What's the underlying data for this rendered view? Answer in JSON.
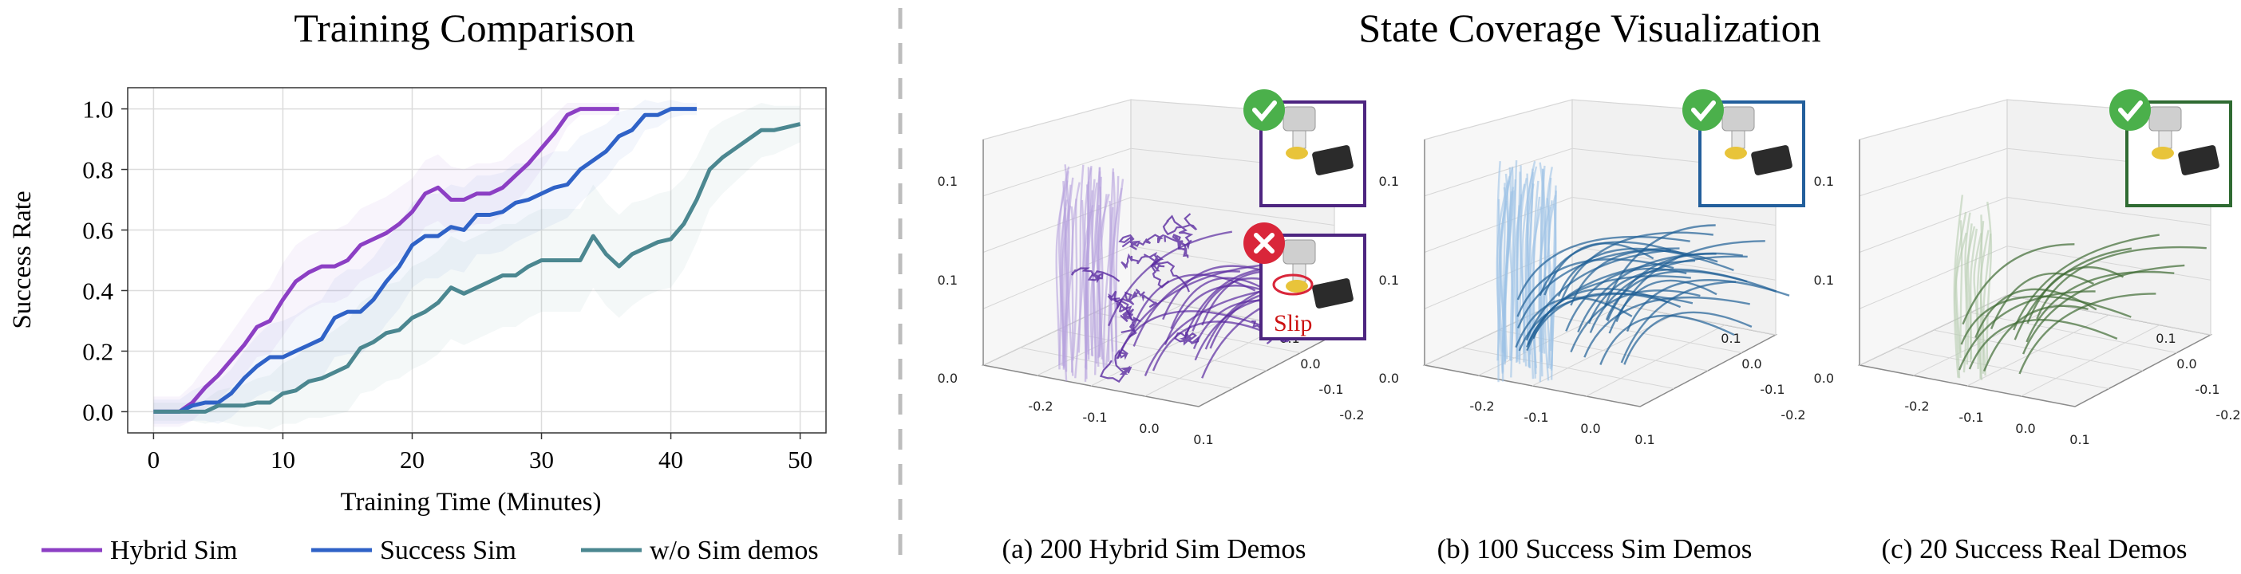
{
  "left_title": "Training Comparison",
  "right_title": "State Coverage Visualization",
  "colors": {
    "hybrid": "#8c3fc4",
    "success": "#2f62c7",
    "wo": "#4b8790",
    "grid": "#dcdcdc",
    "divider": "#bdbdbd",
    "panel_a": "#4d2580",
    "panel_b": "#235f9c",
    "panel_c": "#2f6b32",
    "check": "#4bb04b",
    "cross": "#d9263a"
  },
  "chart_data": [
    {
      "type": "line",
      "title": "Training Comparison",
      "xlabel": "Training Time (Minutes)",
      "ylabel": "Success Rate",
      "xlim": [
        -2,
        52
      ],
      "ylim": [
        -0.07,
        1.07
      ],
      "xticks": [
        "0",
        "10",
        "20",
        "30",
        "40",
        "50"
      ],
      "yticks": [
        "0.0",
        "0.2",
        "0.4",
        "0.6",
        "0.8",
        "1.0"
      ],
      "grid": true,
      "legend": "bottom",
      "series": [
        {
          "name": "Hybrid Sim",
          "color": "#8c3fc4",
          "x": [
            0,
            1,
            2,
            3,
            4,
            5,
            6,
            7,
            8,
            9,
            10,
            11,
            12,
            13,
            14,
            15,
            16,
            17,
            18,
            19,
            20,
            21,
            22,
            23,
            24,
            25,
            26,
            27,
            28,
            29,
            30,
            31,
            32,
            33,
            34,
            35,
            36
          ],
          "y": [
            0,
            0,
            0,
            0.03,
            0.08,
            0.12,
            0.17,
            0.22,
            0.28,
            0.3,
            0.37,
            0.43,
            0.46,
            0.48,
            0.48,
            0.5,
            0.55,
            0.57,
            0.59,
            0.62,
            0.66,
            0.72,
            0.74,
            0.7,
            0.7,
            0.72,
            0.72,
            0.74,
            0.78,
            0.82,
            0.87,
            0.92,
            0.98,
            1.0,
            1.0,
            1.0,
            1.0
          ],
          "band": [
            0.05,
            0.05,
            0.05,
            0.06,
            0.07,
            0.08,
            0.09,
            0.1,
            0.1,
            0.11,
            0.12,
            0.12,
            0.12,
            0.12,
            0.12,
            0.12,
            0.12,
            0.12,
            0.12,
            0.12,
            0.11,
            0.11,
            0.11,
            0.11,
            0.1,
            0.1,
            0.1,
            0.09,
            0.09,
            0.08,
            0.07,
            0.06,
            0.04,
            0.02,
            0.02,
            0.02,
            0.02
          ]
        },
        {
          "name": "Success Sim",
          "color": "#2f62c7",
          "x": [
            0,
            1,
            2,
            3,
            4,
            5,
            6,
            7,
            8,
            9,
            10,
            11,
            12,
            13,
            14,
            15,
            16,
            17,
            18,
            19,
            20,
            21,
            22,
            23,
            24,
            25,
            26,
            27,
            28,
            29,
            30,
            31,
            32,
            33,
            34,
            35,
            36,
            37,
            38,
            39,
            40,
            41,
            42
          ],
          "y": [
            0,
            0,
            0,
            0.02,
            0.03,
            0.03,
            0.06,
            0.11,
            0.15,
            0.18,
            0.18,
            0.2,
            0.22,
            0.24,
            0.31,
            0.33,
            0.33,
            0.37,
            0.43,
            0.48,
            0.55,
            0.58,
            0.58,
            0.61,
            0.6,
            0.65,
            0.65,
            0.66,
            0.69,
            0.7,
            0.72,
            0.74,
            0.75,
            0.8,
            0.83,
            0.86,
            0.91,
            0.93,
            0.98,
            0.98,
            1.0,
            1.0,
            1.0
          ],
          "band": [
            0.04,
            0.04,
            0.04,
            0.05,
            0.06,
            0.07,
            0.08,
            0.09,
            0.1,
            0.11,
            0.12,
            0.12,
            0.13,
            0.13,
            0.13,
            0.14,
            0.14,
            0.14,
            0.14,
            0.14,
            0.14,
            0.14,
            0.14,
            0.14,
            0.14,
            0.13,
            0.13,
            0.13,
            0.13,
            0.12,
            0.12,
            0.12,
            0.11,
            0.11,
            0.1,
            0.09,
            0.08,
            0.07,
            0.05,
            0.04,
            0.03,
            0.02,
            0.02
          ]
        },
        {
          "name": "w/o Sim demos",
          "color": "#4b8790",
          "x": [
            0,
            1,
            2,
            3,
            4,
            5,
            6,
            7,
            8,
            9,
            10,
            11,
            12,
            13,
            14,
            15,
            16,
            17,
            18,
            19,
            20,
            21,
            22,
            23,
            24,
            25,
            26,
            27,
            28,
            29,
            30,
            31,
            32,
            33,
            34,
            35,
            36,
            37,
            38,
            39,
            40,
            41,
            42,
            43,
            44,
            45,
            46,
            47,
            48,
            49,
            50
          ],
          "y": [
            0,
            0,
            0,
            0,
            0,
            0.02,
            0.02,
            0.02,
            0.03,
            0.03,
            0.06,
            0.07,
            0.1,
            0.11,
            0.13,
            0.15,
            0.21,
            0.23,
            0.26,
            0.27,
            0.31,
            0.33,
            0.36,
            0.41,
            0.39,
            0.41,
            0.43,
            0.45,
            0.45,
            0.48,
            0.5,
            0.5,
            0.5,
            0.5,
            0.58,
            0.52,
            0.48,
            0.52,
            0.54,
            0.56,
            0.57,
            0.62,
            0.7,
            0.8,
            0.84,
            0.87,
            0.9,
            0.93,
            0.93,
            0.94,
            0.95
          ],
          "band": [
            0.03,
            0.03,
            0.03,
            0.03,
            0.04,
            0.05,
            0.06,
            0.07,
            0.08,
            0.09,
            0.1,
            0.11,
            0.12,
            0.13,
            0.14,
            0.15,
            0.15,
            0.16,
            0.16,
            0.16,
            0.17,
            0.17,
            0.17,
            0.17,
            0.17,
            0.17,
            0.17,
            0.17,
            0.17,
            0.17,
            0.17,
            0.17,
            0.17,
            0.17,
            0.17,
            0.17,
            0.17,
            0.17,
            0.16,
            0.16,
            0.16,
            0.15,
            0.14,
            0.13,
            0.12,
            0.11,
            0.1,
            0.09,
            0.08,
            0.07,
            0.06
          ]
        }
      ]
    }
  ],
  "panels": [
    {
      "caption": "(a) 200 Hybrid Sim Demos",
      "zticks": [
        "0.1",
        "0.1",
        "0.0"
      ],
      "xticks": [
        "-0.2",
        "-0.1",
        "0.0",
        "0.1"
      ],
      "yticks": [
        "-0.2",
        "-0.1",
        "0.0",
        "0.1"
      ],
      "slip_label": "Slip"
    },
    {
      "caption": "(b) 100 Success Sim Demos",
      "zticks": [
        "0.1",
        "0.1",
        "0.0"
      ],
      "xticks": [
        "-0.2",
        "-0.1",
        "0.0",
        "0.1"
      ],
      "yticks": [
        "-0.2",
        "-0.1",
        "0.0",
        "0.1"
      ]
    },
    {
      "caption": "(c) 20 Success Real Demos",
      "zticks": [
        "0.1",
        "0.1",
        "0.0"
      ],
      "xticks": [
        "-0.2",
        "-0.1",
        "0.0",
        "0.1"
      ],
      "yticks": [
        "-0.2",
        "-0.1",
        "0.0",
        "0.1"
      ]
    }
  ]
}
